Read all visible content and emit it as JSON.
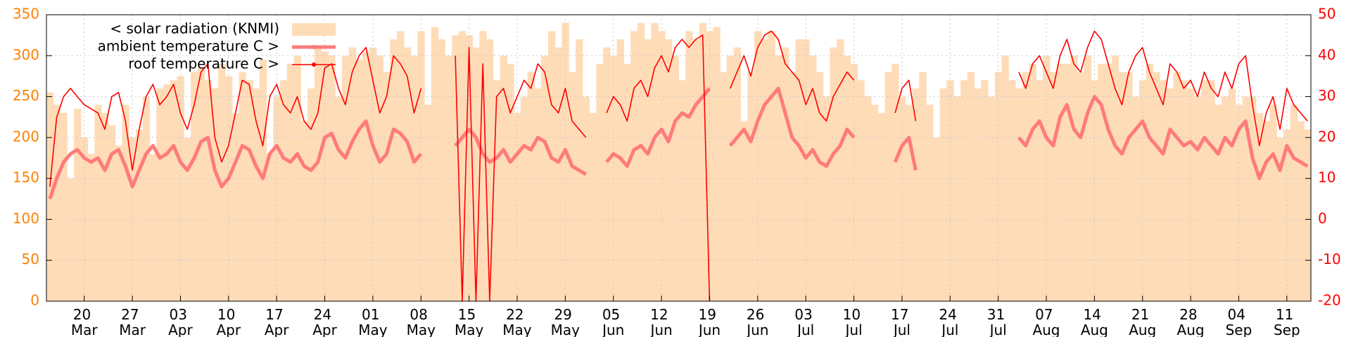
{
  "chart_data": {
    "type": "line",
    "categories": [
      null,
      null,
      null,
      null,
      null,
      "20 Mar",
      null,
      null,
      null,
      null,
      null,
      null,
      "27 Mar",
      null,
      null,
      null,
      null,
      null,
      null,
      "03 Apr",
      null,
      null,
      null,
      null,
      null,
      null,
      "10 Apr",
      null,
      null,
      null,
      null,
      null,
      null,
      "17 Apr",
      null,
      null,
      null,
      null,
      null,
      null,
      "24 Apr",
      null,
      null,
      null,
      null,
      null,
      null,
      "01 May",
      null,
      null,
      null,
      null,
      null,
      null,
      "08 May",
      null,
      null,
      null,
      null,
      null,
      null,
      "15 May",
      null,
      null,
      null,
      null,
      null,
      null,
      "22 May",
      null,
      null,
      null,
      null,
      null,
      null,
      "29 May",
      null,
      null,
      null,
      null,
      null,
      null,
      "05 Jun",
      null,
      null,
      null,
      null,
      null,
      null,
      "12 Jun",
      null,
      null,
      null,
      null,
      null,
      null,
      "19 Jun",
      null,
      null,
      null,
      null,
      null,
      null,
      "26 Jun",
      null,
      null,
      null,
      null,
      null,
      null,
      "03 Jul",
      null,
      null,
      null,
      null,
      null,
      null,
      "10 Jul",
      null,
      null,
      null,
      null,
      null,
      null,
      "17 Jul",
      null,
      null,
      null,
      null,
      null,
      null,
      "24 Jul",
      null,
      null,
      null,
      null,
      null,
      null,
      "31 Jul",
      null,
      null,
      null,
      null,
      null,
      null,
      "07 Aug",
      null,
      null,
      null,
      null,
      null,
      null,
      "14 Aug",
      null,
      null,
      null,
      null,
      null,
      null,
      "21 Aug",
      null,
      null,
      null,
      null,
      null,
      null,
      "28 Aug",
      null,
      null,
      null,
      null,
      null,
      null,
      "04 Sep",
      null,
      null,
      null,
      null,
      null,
      null,
      "11 Sep",
      null,
      null,
      null
    ],
    "series": [
      {
        "name": "< solar radiation (KNMI)",
        "type": "area",
        "axis": "y",
        "color": "#ffdcb8",
        "values": [
          255,
          240,
          230,
          150,
          235,
          200,
          180,
          240,
          230,
          215,
          190,
          240,
          200,
          210,
          250,
          180,
          260,
          265,
          270,
          275,
          200,
          280,
          285,
          270,
          260,
          290,
          275,
          230,
          280,
          270,
          260,
          295,
          180,
          250,
          270,
          290,
          300,
          220,
          260,
          310,
          305,
          300,
          250,
          300,
          310,
          295,
          305,
          310,
          300,
          280,
          320,
          330,
          310,
          300,
          330,
          240,
          335,
          320,
          300,
          325,
          330,
          325,
          310,
          330,
          320,
          270,
          300,
          290,
          230,
          250,
          280,
          260,
          300,
          330,
          310,
          340,
          280,
          320,
          250,
          230,
          290,
          310,
          300,
          320,
          290,
          330,
          340,
          320,
          340,
          330,
          320,
          300,
          270,
          330,
          320,
          340,
          330,
          335,
          280,
          300,
          310,
          220,
          280,
          330,
          320,
          330,
          300,
          310,
          280,
          320,
          320,
          300,
          280,
          250,
          310,
          320,
          300,
          290,
          270,
          250,
          240,
          230,
          280,
          290,
          250,
          240,
          260,
          280,
          240,
          200,
          260,
          270,
          250,
          270,
          280,
          260,
          270,
          250,
          280,
          300,
          270,
          260,
          280,
          290,
          270,
          300,
          280,
          290,
          290,
          300,
          280,
          300,
          270,
          290,
          290,
          300,
          280,
          280,
          250,
          270,
          290,
          280,
          270,
          260,
          280,
          270,
          260,
          250,
          270,
          270,
          240,
          250,
          260,
          240,
          250,
          250,
          230,
          220,
          240,
          200,
          210,
          240,
          220,
          210
        ]
      },
      {
        "name": "ambient temperature C >",
        "type": "line",
        "axis": "y2",
        "color": "#ff7b7b",
        "width": 5,
        "values": [
          5,
          10,
          14,
          16,
          17,
          15,
          14,
          15,
          12,
          16,
          17,
          13,
          8,
          12,
          16,
          18,
          15,
          16,
          18,
          14,
          12,
          15,
          19,
          20,
          12,
          8,
          10,
          14,
          18,
          17,
          13,
          10,
          16,
          18,
          15,
          14,
          16,
          13,
          12,
          14,
          20,
          21,
          17,
          15,
          19,
          22,
          24,
          18,
          14,
          16,
          22,
          21,
          19,
          14,
          16,
          null,
          null,
          null,
          null,
          18,
          20,
          22,
          20,
          16,
          14,
          15,
          17,
          14,
          16,
          18,
          17,
          20,
          19,
          15,
          14,
          17,
          13,
          12,
          11,
          null,
          null,
          14,
          16,
          15,
          13,
          17,
          18,
          16,
          20,
          22,
          19,
          24,
          26,
          25,
          28,
          30,
          32,
          null,
          null,
          18,
          20,
          22,
          19,
          24,
          28,
          30,
          32,
          26,
          20,
          18,
          15,
          17,
          14,
          13,
          16,
          18,
          22,
          20,
          null,
          null,
          null,
          null,
          null,
          14,
          18,
          20,
          12,
          null,
          null,
          null,
          null,
          null,
          null,
          null,
          null,
          null,
          null,
          null,
          null,
          null,
          null,
          20,
          18,
          22,
          24,
          20,
          18,
          25,
          28,
          22,
          20,
          26,
          30,
          28,
          22,
          18,
          16,
          20,
          22,
          24,
          20,
          18,
          16,
          22,
          20,
          18,
          19,
          17,
          20,
          18,
          16,
          20,
          18,
          22,
          24,
          15,
          10,
          14,
          16,
          12,
          18,
          15,
          14,
          13
        ]
      },
      {
        "name": "roof temperature C >",
        "type": "line",
        "axis": "y2",
        "color": "#ff0000",
        "width": 1.6,
        "values": [
          8,
          25,
          30,
          32,
          30,
          28,
          27,
          26,
          22,
          30,
          31,
          24,
          12,
          22,
          30,
          33,
          28,
          30,
          33,
          26,
          22,
          28,
          36,
          38,
          20,
          14,
          18,
          26,
          34,
          33,
          24,
          18,
          30,
          33,
          28,
          26,
          30,
          24,
          22,
          26,
          37,
          38,
          32,
          28,
          36,
          40,
          42,
          34,
          26,
          30,
          40,
          38,
          35,
          26,
          32,
          null,
          null,
          null,
          null,
          40,
          -20,
          42,
          -20,
          38,
          -20,
          30,
          32,
          26,
          30,
          34,
          32,
          38,
          36,
          28,
          26,
          32,
          24,
          22,
          20,
          null,
          null,
          26,
          30,
          28,
          24,
          32,
          34,
          30,
          37,
          40,
          36,
          42,
          44,
          42,
          44,
          45,
          -20,
          null,
          null,
          32,
          36,
          40,
          35,
          42,
          45,
          46,
          44,
          38,
          36,
          34,
          28,
          32,
          26,
          24,
          30,
          33,
          36,
          34,
          null,
          null,
          null,
          null,
          null,
          26,
          32,
          34,
          24,
          null,
          null,
          null,
          null,
          null,
          null,
          null,
          null,
          null,
          null,
          null,
          null,
          null,
          null,
          36,
          32,
          38,
          40,
          36,
          32,
          40,
          44,
          38,
          36,
          42,
          46,
          44,
          38,
          32,
          28,
          36,
          40,
          42,
          36,
          32,
          28,
          38,
          36,
          32,
          34,
          30,
          36,
          32,
          30,
          36,
          32,
          38,
          40,
          28,
          18,
          26,
          30,
          22,
          32,
          28,
          26,
          24
        ]
      }
    ],
    "ylim": [
      0,
      350
    ],
    "yticks": [
      0,
      50,
      100,
      150,
      200,
      250,
      300,
      350
    ],
    "ycolor": "#ff8000",
    "y2lim": [
      -20,
      50
    ],
    "y2ticks": [
      -20,
      -10,
      0,
      10,
      20,
      30,
      40,
      50
    ],
    "y2color": "#ff0000",
    "grid": true,
    "legend": "top left"
  }
}
